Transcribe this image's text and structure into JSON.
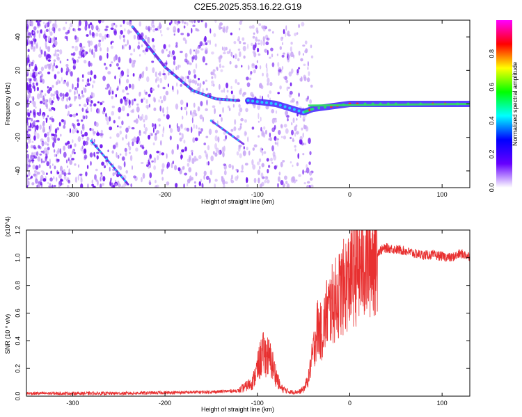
{
  "title": "C2E5.2025.353.16.22.G19",
  "colors": {
    "spectrogram_dense": "#6a0ff0",
    "spectrogram_faint": "#c9a8f5",
    "snr_line": "#e83030",
    "colorbar": [
      "#ff00ff",
      "#ff0000",
      "#ffff00",
      "#00ff00",
      "#00ffff",
      "#0000ff",
      "#6600ff",
      "#ffffff"
    ]
  },
  "chart_data": [
    {
      "id": "spectrogram",
      "type": "heatmap",
      "title": "",
      "xlabel": "Height of straight line (km)",
      "ylabel": "Frequency (Hz)",
      "xlim": [
        -350,
        130
      ],
      "ylim": [
        -50,
        50
      ],
      "xticks": [
        -300,
        -200,
        -100,
        0,
        100
      ],
      "yticks": [
        -40,
        -20,
        0,
        20,
        40
      ],
      "colorbar": {
        "label": "Normalized spectral amplitude",
        "range": [
          0,
          1
        ],
        "ticks": [
          "0.0",
          "0.2",
          "0.4",
          "0.6",
          "0.8"
        ]
      },
      "features": [
        {
          "name": "descending-trace-upper",
          "x": [
            -235,
            -200,
            -170,
            -145,
            -120
          ],
          "y": [
            46,
            22,
            8,
            3,
            2
          ]
        },
        {
          "name": "descending-trace-lower",
          "x": [
            -280,
            -260,
            -240
          ],
          "y": [
            -22,
            -35,
            -48
          ]
        },
        {
          "name": "branch-trace",
          "x": [
            -150,
            -115
          ],
          "y": [
            -10,
            -24
          ]
        },
        {
          "name": "carrier-band",
          "x": [
            -110,
            -80,
            -50,
            -40,
            0,
            50,
            130
          ],
          "y": [
            2,
            0,
            -5,
            -3,
            0,
            0,
            0
          ]
        }
      ]
    },
    {
      "id": "snr",
      "type": "line",
      "title": "",
      "xlabel": "Height of straight line (km)",
      "ylabel": "SNR (10 * v/v)",
      "multiplier": "(x10^4)",
      "xlim": [
        -350,
        130
      ],
      "ylim": [
        0,
        1.2
      ],
      "xticks": [
        -300,
        -200,
        -100,
        0,
        100
      ],
      "yticks": [
        "0.0",
        "0.2",
        "0.4",
        "0.6",
        "0.8",
        "1.0",
        "1.2"
      ],
      "series": [
        {
          "name": "SNR",
          "x": [
            -350,
            -300,
            -250,
            -200,
            -150,
            -120,
            -105,
            -100,
            -95,
            -90,
            -85,
            -75,
            -65,
            -55,
            -50,
            -45,
            -40,
            -35,
            -30,
            -25,
            -20,
            -15,
            -10,
            -5,
            0,
            5,
            10,
            15,
            20,
            25,
            30,
            35,
            40,
            50,
            60,
            70,
            80,
            90,
            100,
            110,
            120,
            130
          ],
          "values": [
            0.02,
            0.02,
            0.02,
            0.025,
            0.03,
            0.04,
            0.1,
            0.2,
            0.3,
            0.3,
            0.25,
            0.06,
            0.03,
            0.03,
            0.05,
            0.12,
            0.3,
            0.5,
            0.45,
            0.6,
            0.65,
            0.7,
            0.75,
            0.8,
            0.85,
            0.9,
            0.92,
            0.95,
            0.98,
            1.02,
            1.04,
            1.06,
            1.07,
            1.06,
            1.05,
            1.03,
            1.02,
            1.02,
            1.01,
            1.0,
            1.03,
            1.01
          ]
        }
      ]
    }
  ]
}
